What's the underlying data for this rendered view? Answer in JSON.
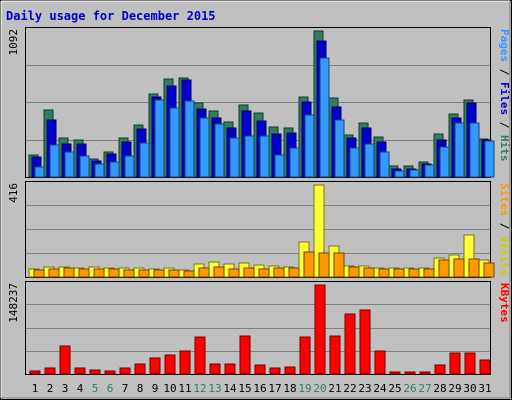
{
  "chart_data": {
    "type": "bar",
    "title": "Daily usage for December 2015",
    "categories": [
      "1",
      "2",
      "3",
      "4",
      "5",
      "6",
      "7",
      "8",
      "9",
      "10",
      "11",
      "12",
      "13",
      "14",
      "15",
      "16",
      "17",
      "18",
      "19",
      "20",
      "21",
      "22",
      "23",
      "24",
      "25",
      "26",
      "27",
      "28",
      "29",
      "30",
      "31"
    ],
    "weekend_days": [
      "5",
      "6",
      "12",
      "13",
      "19",
      "20",
      "26",
      "27"
    ],
    "panels": [
      {
        "name": "top",
        "max_label": "1092",
        "ylim": [
          0,
          1092
        ],
        "series": [
          {
            "name": "Hits",
            "color": "#2f7f5f",
            "values": [
              165,
              500,
              290,
              280,
              135,
              190,
              295,
              390,
              620,
              730,
              740,
              550,
              490,
              410,
              540,
              480,
              375,
              365,
              600,
              1092,
              590,
              315,
              405,
              300,
              80,
              80,
              110,
              325,
              470,
              575,
              285
            ]
          },
          {
            "name": "Files",
            "color": "#0000cc",
            "values": [
              150,
              430,
              250,
              250,
              120,
              170,
              265,
              360,
              600,
              680,
              725,
              510,
              440,
              370,
              490,
              420,
              320,
              330,
              560,
              1020,
              520,
              290,
              365,
              260,
              60,
              60,
              100,
              280,
              440,
              550,
              275
            ]
          },
          {
            "name": "Pages",
            "color": "#3399ff",
            "values": [
              75,
              240,
              185,
              155,
              95,
              110,
              160,
              255,
              575,
              515,
              565,
              445,
              400,
              295,
              310,
              305,
              165,
              220,
              460,
              890,
              425,
              220,
              250,
              190,
              45,
              50,
              90,
              225,
              405,
              405,
              270
            ]
          }
        ],
        "axis_legend": [
          {
            "text": "Pages",
            "color": "#3399ff"
          },
          {
            "text": " / ",
            "color": "#000000"
          },
          {
            "text": "Files",
            "color": "#0000cc"
          },
          {
            "text": " / ",
            "color": "#000000"
          },
          {
            "text": "Hits",
            "color": "#2f7f5f"
          }
        ]
      },
      {
        "name": "middle",
        "max_label": "416",
        "ylim": [
          0,
          416
        ],
        "series": [
          {
            "name": "Visits",
            "color": "#ffff33",
            "values": [
              35,
              45,
              45,
              40,
              45,
              40,
              40,
              40,
              35,
              40,
              30,
              60,
              70,
              60,
              65,
              55,
              50,
              45,
              160,
              416,
              140,
              50,
              50,
              40,
              40,
              40,
              40,
              85,
              100,
              190,
              75
            ]
          },
          {
            "name": "Sites",
            "color": "#ff9900",
            "values": [
              30,
              35,
              40,
              35,
              35,
              35,
              30,
              30,
              30,
              30,
              25,
              40,
              45,
              35,
              40,
              35,
              40,
              40,
              115,
              110,
              110,
              45,
              40,
              35,
              35,
              35,
              35,
              75,
              80,
              80,
              65
            ]
          }
        ],
        "axis_legend": [
          {
            "text": "Sites",
            "color": "#ff9900"
          },
          {
            "text": " / ",
            "color": "#000000"
          },
          {
            "text": "Visits",
            "color": "#cccc00"
          }
        ]
      },
      {
        "name": "bottom",
        "max_label": "148237",
        "ylim": [
          0,
          148237
        ],
        "series": [
          {
            "name": "KBytes",
            "color": "#ff0000",
            "values": [
              5000,
              10000,
              47000,
              10000,
              6000,
              5000,
              10000,
              17000,
              27000,
              31000,
              38000,
              61000,
              17000,
              17000,
              64000,
              15000,
              10000,
              11000,
              62000,
              148237,
              63000,
              100000,
              107000,
              39000,
              4000,
              4000,
              4000,
              15000,
              35000,
              35000,
              23000
            ]
          }
        ],
        "axis_legend": [
          {
            "text": "KBytes",
            "color": "#ff0000"
          }
        ]
      }
    ],
    "colors": {
      "background": "#c0c0c0",
      "frame": "#000000",
      "grid": "#808080",
      "weekend_label": "#2f7f5f",
      "title": "#0000cc"
    }
  }
}
